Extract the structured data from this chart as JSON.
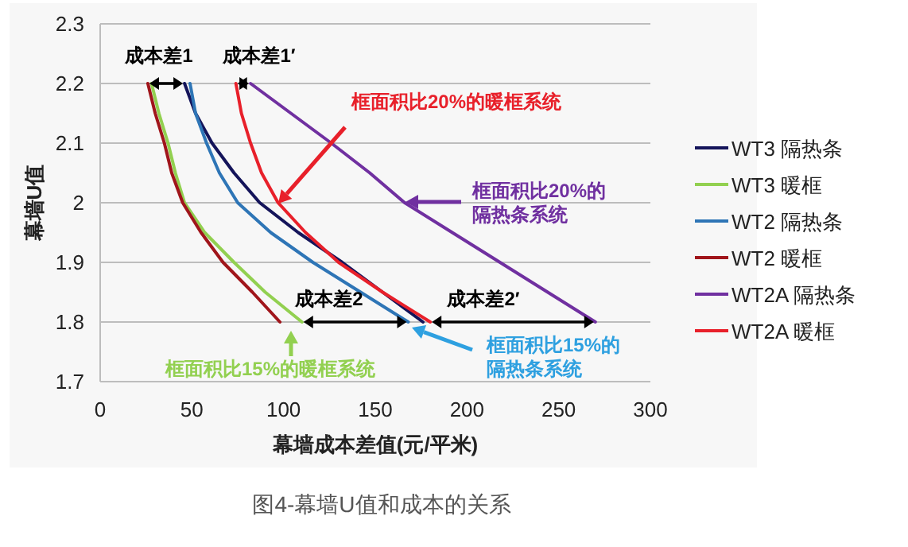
{
  "chart_data": {
    "type": "line",
    "xlabel": "幕墙成本差值(元/平米)",
    "ylabel": "幕墙U值",
    "xlim": [
      0,
      300
    ],
    "xticks": [
      0,
      50,
      100,
      150,
      200,
      250,
      300
    ],
    "ylim": [
      1.7,
      2.3
    ],
    "yticks": [
      1.7,
      1.8,
      1.9,
      2,
      2.1,
      2.2,
      2.3
    ],
    "grid": "y",
    "legend": "right",
    "marker": "none",
    "line_style": "solid",
    "series": [
      {
        "name": "WT3 隔热条",
        "color": "#14145a",
        "x": [
          46,
          52,
          61,
          73,
          87,
          108,
          132,
          154,
          176
        ],
        "values": [
          2.2,
          2.15,
          2.1,
          2.05,
          2.0,
          1.95,
          1.9,
          1.85,
          1.8
        ]
      },
      {
        "name": "WT3 暖框",
        "color": "#92d050",
        "x": [
          28,
          32,
          37,
          41,
          46,
          57,
          73,
          90,
          110
        ],
        "values": [
          2.2,
          2.15,
          2.1,
          2.05,
          2.0,
          1.95,
          1.9,
          1.85,
          1.8
        ]
      },
      {
        "name": "WT2 隔热条",
        "color": "#2e75b6",
        "x": [
          49,
          52,
          58,
          65,
          75,
          93,
          116,
          142,
          168
        ],
        "values": [
          2.2,
          2.15,
          2.1,
          2.05,
          2.0,
          1.95,
          1.9,
          1.85,
          1.8
        ]
      },
      {
        "name": "WT2 暖框",
        "color": "#a0151b",
        "x": [
          26,
          30,
          35,
          39,
          45,
          55,
          67,
          83,
          98
        ],
        "values": [
          2.2,
          2.15,
          2.1,
          2.05,
          2.0,
          1.95,
          1.9,
          1.85,
          1.8
        ]
      },
      {
        "name": "WT2A 隔热条",
        "color": "#7030a0",
        "x": [
          82,
          104,
          126,
          147,
          166,
          192,
          218,
          244,
          270
        ],
        "values": [
          2.2,
          2.15,
          2.1,
          2.05,
          2.0,
          1.95,
          1.9,
          1.85,
          1.8
        ]
      },
      {
        "name": "WT2A 暖框",
        "color": "#e8202a",
        "x": [
          74,
          77,
          82,
          88,
          97,
          112,
          130,
          154,
          180
        ],
        "values": [
          2.2,
          2.15,
          2.1,
          2.05,
          2.0,
          1.95,
          1.9,
          1.85,
          1.8
        ]
      }
    ],
    "annotations": [
      "成本差1",
      "成本差1′",
      {
        "text": "成本差2",
        "x": 168,
        "y": 1.8
      },
      {
        "text": "成本差2′",
        "x": 270,
        "y": 1.8
      },
      "框面积比20%的暖框系统",
      "框面积比20%的隔热条系统",
      "框面积比15%的暖框系统",
      "框面积比15%的隔热条系统",
      "图4-幕墙U值和成本的关系"
    ]
  }
}
